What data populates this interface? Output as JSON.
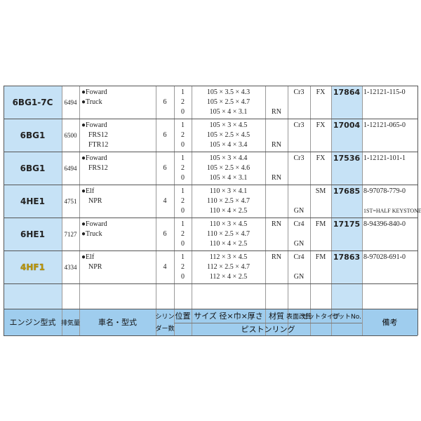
{
  "table": {
    "header": {
      "engine": "エンジン型式",
      "displacement": "排気量",
      "vehicle": "車名・型式",
      "cylinders": [
        "シリン",
        "ダー数"
      ],
      "position": "位置",
      "size": "サイズ 径×巾×厚さ",
      "material": "材質",
      "surface": "表面改質",
      "settype": "セットタイプ",
      "setNo": "セットNo.",
      "remarks": "備考",
      "pistonRing": "ピストンリング"
    },
    "rows": [
      {
        "engine": "6BG1-7C",
        "displacement": 6494,
        "vehicles": [
          "●Foward",
          "●Truck"
        ],
        "cylinders": 6,
        "positions": [
          1,
          2,
          0
        ],
        "sizes": [
          "105 × 3.5 × 4.3",
          "105 × 2.5 × 4.7",
          "105 × 4 × 3.1"
        ],
        "material": [
          null,
          null,
          "RN"
        ],
        "surface": [
          "Cr3",
          null,
          null
        ],
        "settype": [
          "FX",
          null,
          null
        ],
        "setNo": 17864,
        "remarks": [
          "1-12121-115-0",
          null,
          null
        ]
      },
      {
        "engine": "6BG1",
        "displacement": 6500,
        "vehicles": [
          "●Foward",
          "FRS12",
          "FTR12"
        ],
        "cylinders": 6,
        "positions": [
          1,
          2,
          0
        ],
        "sizes": [
          "105 × 3 × 4.5",
          "105 × 2.5 × 4.5",
          "105 × 4 × 3.4"
        ],
        "material": [
          null,
          null,
          "RN"
        ],
        "surface": [
          "Cr3",
          null,
          null
        ],
        "settype": [
          "FX",
          null,
          null
        ],
        "setNo": 17004,
        "remarks": [
          "1-12121-065-0",
          null,
          null
        ]
      },
      {
        "engine": "6BG1",
        "displacement": 6494,
        "vehicles": [
          "●Foward",
          "FRS12"
        ],
        "cylinders": 6,
        "positions": [
          1,
          2,
          0
        ],
        "sizes": [
          "105 × 3 × 4.4",
          "105 × 2.5 × 4.6",
          "105 × 4 × 3.1"
        ],
        "material": [
          null,
          null,
          "RN"
        ],
        "surface": [
          "Cr3",
          null,
          null
        ],
        "settype": [
          "FX",
          null,
          null
        ],
        "setNo": 17536,
        "remarks": [
          "1-12121-101-1",
          null,
          null
        ]
      },
      {
        "engine": "4HE1",
        "displacement": 4751,
        "vehicles": [
          "●Elf",
          "NPR"
        ],
        "cylinders": 4,
        "positions": [
          1,
          2,
          0
        ],
        "sizes": [
          "110 × 3 × 4.1",
          "110 × 2.5 × 4.7",
          "110 × 4 × 2.5"
        ],
        "material": [
          null,
          null,
          null
        ],
        "surface": [
          null,
          null,
          "GN"
        ],
        "settype": [
          "SM",
          null,
          null
        ],
        "setNo": 17685,
        "remarks": [
          "8-97078-779-0",
          null,
          "1ST=HALF KEYSTONE"
        ]
      },
      {
        "engine": "6HE1",
        "displacement": 7127,
        "vehicles": [
          "●Foward",
          "●Truck"
        ],
        "cylinders": 6,
        "positions": [
          1,
          2,
          0
        ],
        "sizes": [
          "110 × 3 × 4.5",
          "110 × 2.5 × 4.7",
          "110 × 4 × 2.5"
        ],
        "material": [
          "RN",
          null,
          null
        ],
        "surface": [
          "Cr4",
          null,
          "GN"
        ],
        "settype": [
          "FM",
          null,
          null
        ],
        "setNo": 17175,
        "remarks": [
          "8-94396-840-0",
          null,
          null
        ]
      },
      {
        "engine": "4HF1",
        "displacement": 4334,
        "vehicles": [
          "●Elf",
          "NPR"
        ],
        "cylinders": 4,
        "positions": [
          1,
          2,
          0
        ],
        "sizes": [
          "112 × 3 × 4.5",
          "112 × 2.5 × 4.7",
          "112 × 4 × 2.5"
        ],
        "material": [
          "RN",
          null,
          null
        ],
        "surface": [
          "Cr4",
          null,
          "GN"
        ],
        "settype": [
          "FM",
          null,
          null
        ],
        "setNo": 17863,
        "remarks": [
          "8-97028-691-0",
          null,
          null
        ]
      }
    ]
  }
}
